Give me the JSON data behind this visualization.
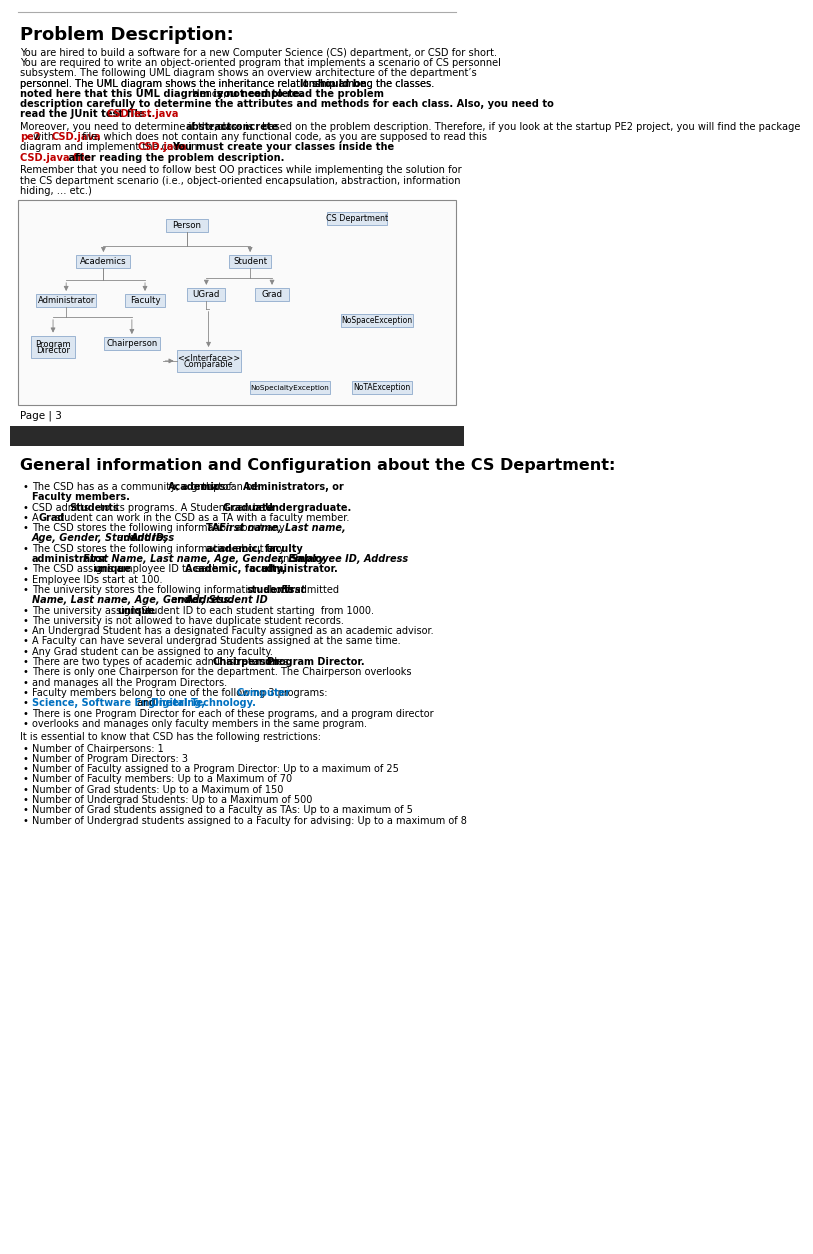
{
  "title": "Problem Description:",
  "bg_color": "#ffffff",
  "page_label": "Page | 3",
  "section2_title": "General information and Configuration about the CS Department:",
  "dark_bar_color": "#2a2a2a",
  "uml_box_fill": "#dce6f1",
  "uml_box_border": "#8eaacc",
  "top_line_color": "#aaaaaa",
  "para_lines": [
    [
      "n",
      "You are hired to build a software for a new Computer Science (CS) department, or CSD for short."
    ],
    [
      "n",
      "You are required to write an object-oriented program that implements a scenario of CS personnel"
    ],
    [
      "n",
      "subsystem. The following UML diagram shows an overview architecture of the department’s"
    ],
    [
      "n",
      "personnel. The UML diagram shows the inheritance relationship among the classes. "
    ],
    [
      "b",
      "It should be"
    ],
    [
      "b",
      "noted here that this UML diagram is not complete."
    ],
    [
      "n",
      " Hence, "
    ],
    [
      "b",
      "you need to read the problem"
    ],
    [
      "b",
      "description carefully to determine the attributes and methods for each class. Also, you need to"
    ],
    [
      "b",
      "read the JUnit test file "
    ],
    [
      "r",
      "CSDTest.java"
    ],
    [
      "b",
      "."
    ],
    [
      "n",
      "Moreover, you need to determine if the class is "
    ],
    [
      "b",
      "abstract"
    ],
    [
      "n",
      ", or "
    ],
    [
      "b",
      "concrete"
    ],
    [
      "n",
      " based on the problem description. Therefore, if you look at the startup PE2 project, you will find the package "
    ],
    [
      "r",
      "pe2"
    ],
    [
      "n",
      " with"
    ],
    [
      "r",
      "CSD.java"
    ],
    [
      "n",
      " file, which does not contain any functional code, as you are supposed to read this"
    ],
    [
      "n",
      "diagram and implement the code in "
    ],
    [
      "r",
      "CSD.java"
    ],
    [
      "b",
      ". "
    ],
    [
      "b",
      "You must create your classes inside the"
    ],
    [
      "r",
      "CSD.java file"
    ],
    [
      "b",
      " after reading the problem description."
    ],
    [
      "n",
      "Remember that you need to follow best OO practices while implementing the solution for"
    ],
    [
      "n",
      "the CS department scenario (i.e., object-oriented encapsulation, abstraction, information"
    ],
    [
      "n",
      "hiding, … etc.)"
    ]
  ],
  "bullet_data": [
    [
      [
        "n",
        "The CSD has as a community, a group of: "
      ],
      [
        "b",
        "Academics"
      ],
      [
        "n",
        " that can be "
      ],
      [
        "b",
        "Administrators, or"
      ]
    ],
    [
      [
        "n",
        ""
      ],
      [
        "b",
        "Faculty members."
      ]
    ],
    [
      [
        "n",
        "CSD admits "
      ],
      [
        "b",
        "Students"
      ],
      [
        "n",
        " to its programs. A Student can be a "
      ],
      [
        "b",
        "Graduate"
      ],
      [
        "n",
        " or "
      ],
      [
        "b",
        "Undergraduate."
      ]
    ],
    [
      [
        "n",
        "A "
      ],
      [
        "b",
        "Grad"
      ],
      [
        "n",
        " student can work in the CSD as a TA with a faculty member."
      ]
    ],
    [
      [
        "n",
        "The CSD stores the following information about any "
      ],
      [
        "b",
        "TA: "
      ],
      [
        "i",
        "First name, Last name,"
      ]
    ],
    [
      [
        "n",
        ""
      ],
      [
        "i",
        "Age, Gender, Student ID,"
      ],
      [
        "n",
        " and "
      ],
      [
        "i",
        "Address"
      ]
    ],
    [
      [
        "n",
        "The CSD stores the following information about any "
      ],
      [
        "b",
        "academic, faculty"
      ],
      [
        "n",
        " or"
      ]
    ],
    [
      [
        "n",
        ""
      ],
      [
        "b",
        "administrator"
      ],
      [
        "n",
        ": "
      ],
      [
        "i",
        "First Name, Last name, Age, Gender, Employee ID, Address"
      ],
      [
        "n",
        " and "
      ],
      [
        "i",
        "Salary."
      ]
    ],
    [
      [
        "n",
        "The CSD assigns a "
      ],
      [
        "u",
        "unique"
      ],
      [
        "n",
        " employee ID to each "
      ],
      [
        "b",
        "Academic, faculty,"
      ],
      [
        "n",
        " or "
      ],
      [
        "b",
        "administrator."
      ]
    ],
    [
      [
        "n",
        "Employee IDs start at 100."
      ]
    ],
    [
      [
        "n",
        "The university stores the following information about admitted "
      ],
      [
        "b",
        "students"
      ],
      [
        "n",
        ": "
      ],
      [
        "i",
        "First"
      ]
    ],
    [
      [
        "n",
        ""
      ],
      [
        "i",
        "Name, Last name, Age, Gender, Student ID"
      ],
      [
        "n",
        " and "
      ],
      [
        "i",
        "Address."
      ]
    ],
    [
      [
        "n",
        "The university assigns a "
      ],
      [
        "u",
        "unique"
      ],
      [
        "n",
        " Student ID to each student starting  from 1000."
      ]
    ],
    [
      [
        "n",
        "The university is not allowed to have duplicate student records."
      ]
    ],
    [
      [
        "n",
        "An Undergrad Student has a designated Faculty assigned as an academic advisor."
      ]
    ],
    [
      [
        "n",
        "A Faculty can have several undergrad Students assigned at the same time."
      ]
    ],
    [
      [
        "n",
        "Any Grad student can be assigned to any faculty."
      ]
    ],
    [
      [
        "n",
        "There are two types of academic administrator roles: "
      ],
      [
        "b",
        "Chairperson"
      ],
      [
        "n",
        " and "
      ],
      [
        "b",
        "Program Director."
      ]
    ],
    [
      [
        "n",
        "There is only one Chairperson for the department. The Chairperson overlooks"
      ]
    ],
    [
      [
        "n",
        "and manages all the Program Directors."
      ]
    ],
    [
      [
        "n",
        "Faculty members belong to one of the following 3 programs:  "
      ],
      [
        "bl",
        "Computer"
      ]
    ],
    [
      [
        "n",
        ""
      ],
      [
        "bl",
        "Science, Software Engineering,"
      ],
      [
        "n",
        " and "
      ],
      [
        "bl",
        "Digital Technology."
      ]
    ],
    [
      [
        "n",
        "There is one Program Director for each of these programs, and a program director"
      ]
    ],
    [
      [
        "n",
        "overlooks and manages only faculty members in the same program."
      ]
    ]
  ],
  "bullet_starts": [
    0,
    2,
    3,
    4,
    6,
    8,
    9,
    10,
    12,
    13,
    14,
    15,
    16,
    17,
    18,
    19,
    20,
    21,
    22,
    23
  ],
  "restrictions_title": "It is essential to know that CSD has the following restrictions:",
  "restrictions": [
    "Number of Chairpersons: 1",
    "Number of Program Directors: 3",
    "Number of Faculty assigned to a Program Director: Up to a maximum of 25",
    "Number of Faculty members: Up to a Maximum of 70",
    "Number of Grad students: Up to a Maximum of 150",
    "Number of Undergrad Students: Up to a Maximum of 500",
    "Number of Grad students assigned to a Faculty as TAs: Up to a maximum of 5",
    "Number of Undergrad students assigned to a Faculty for advising: Up to a maximum of 8"
  ]
}
